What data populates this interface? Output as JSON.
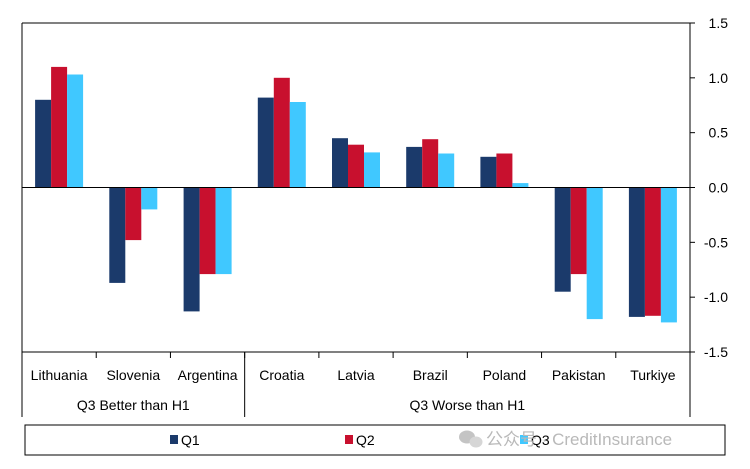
{
  "chart_data": {
    "type": "bar",
    "categories": [
      "Lithuania",
      "Slovenia",
      "Argentina",
      "Croatia",
      "Latvia",
      "Brazil",
      "Poland",
      "Pakistan",
      "Turkiye"
    ],
    "groups": [
      {
        "label": "Q3 Better than H1",
        "count": 3
      },
      {
        "label": "Q3 Worse than H1",
        "count": 6
      }
    ],
    "series": [
      {
        "name": "Q1",
        "color": "#1b3a6b",
        "values": [
          0.8,
          -0.87,
          -1.13,
          0.82,
          0.45,
          0.37,
          0.28,
          -0.95,
          -1.18
        ]
      },
      {
        "name": "Q2",
        "color": "#c8102e",
        "values": [
          1.1,
          -0.48,
          -0.79,
          1.0,
          0.39,
          0.44,
          0.31,
          -0.79,
          -1.17
        ]
      },
      {
        "name": "Q3",
        "color": "#40c8ff",
        "values": [
          1.03,
          -0.2,
          -0.79,
          0.78,
          0.32,
          0.31,
          0.04,
          -1.2,
          -1.23
        ]
      }
    ],
    "ylim": [
      -1.5,
      1.5
    ],
    "yticks": [
      "1.5",
      "1.0",
      "0.5",
      "0.0",
      "-0.5",
      "-1.0",
      "-1.5"
    ],
    "y_axis_side": "right",
    "grid": false,
    "legend_position": "bottom"
  },
  "watermark": {
    "text": "公众号 · CreditInsurance",
    "icon": "wechat-icon"
  }
}
